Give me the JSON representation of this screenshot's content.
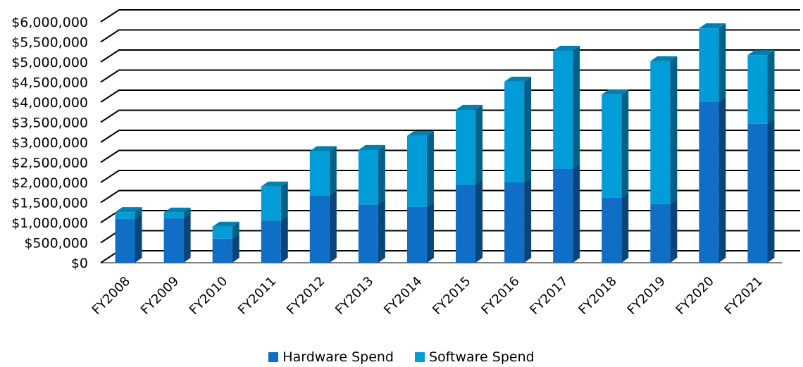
{
  "chart_data": {
    "type": "bar",
    "stacked": true,
    "style": "3d",
    "categories": [
      "FY2008",
      "FY2009",
      "FY2010",
      "FY2011",
      "FY2012",
      "FY2013",
      "FY2014",
      "FY2015",
      "FY2016",
      "FY2017",
      "FY2018",
      "FY2019",
      "FY2020",
      "FY2021"
    ],
    "series": [
      {
        "name": "Hardware Spend",
        "color": "#0f6fc6",
        "values": [
          1090000,
          1110000,
          600000,
          1050000,
          1680000,
          1450000,
          1390000,
          1950000,
          2000000,
          2340000,
          1620000,
          1460000,
          4010000,
          3460000
        ]
      },
      {
        "name": "Software Spend",
        "color": "#009dd9",
        "values": [
          170000,
          140000,
          300000,
          850000,
          1100000,
          1360000,
          1770000,
          1860000,
          2510000,
          2940000,
          2570000,
          3560000,
          1830000,
          1710000
        ]
      }
    ],
    "y_ticks": [
      "$0",
      "$500,000",
      "$1,000,000",
      "$1,500,000",
      "$2,000,000",
      "$2,500,000",
      "$3,000,000",
      "$3,500,000",
      "$4,000,000",
      "$4,500,000",
      "$5,000,000",
      "$5,500,000",
      "$6,000,000"
    ],
    "ylim": [
      0,
      6000000
    ],
    "title": "",
    "xlabel": "",
    "ylabel": "",
    "grid": true,
    "legend_position": "bottom"
  },
  "legend": {
    "hardware_label": "Hardware Spend",
    "software_label": "Software Spend"
  }
}
